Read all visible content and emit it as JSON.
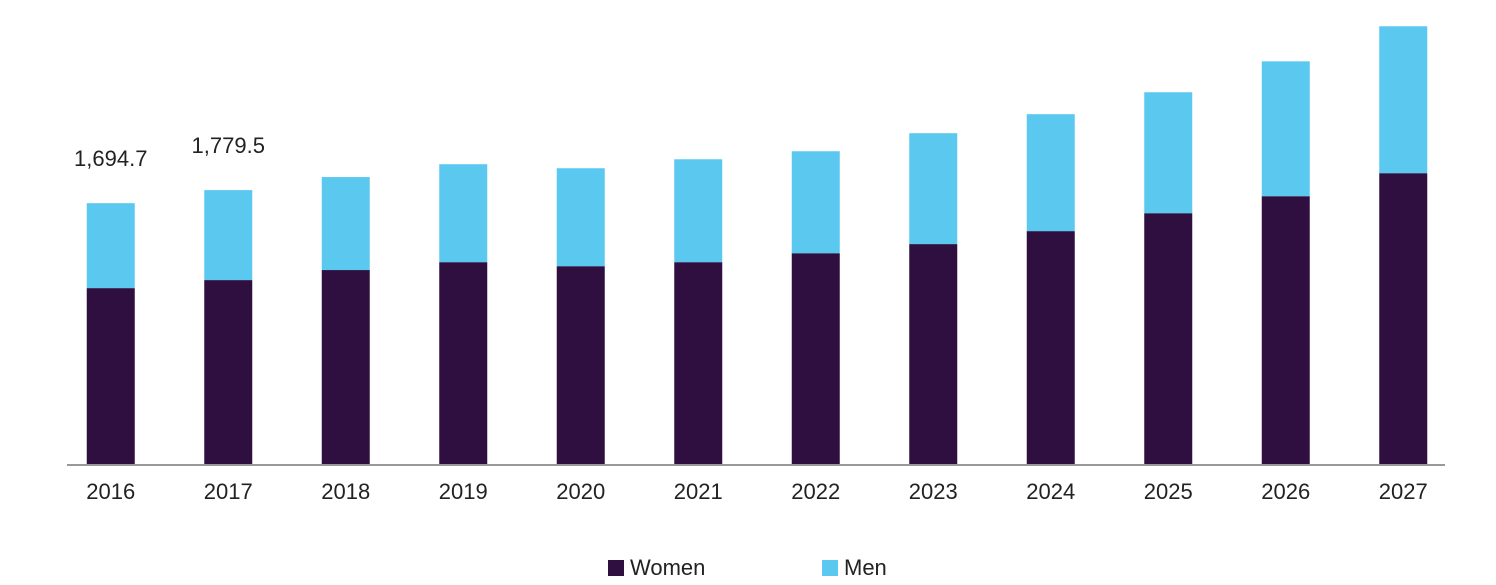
{
  "chart_data": {
    "type": "stacked_bar",
    "categories": [
      "2016",
      "2017",
      "2018",
      "2019",
      "2020",
      "2021",
      "2022",
      "2023",
      "2024",
      "2025",
      "2026",
      "2027"
    ],
    "series": [
      {
        "name": "Women",
        "color": "#2e0f40",
        "values": [
          1145,
          1197,
          1262,
          1313,
          1287,
          1313,
          1371,
          1430,
          1514,
          1630,
          1740,
          1889
        ]
      },
      {
        "name": "Men",
        "color": "#5bc8f0",
        "values": [
          549.7,
          582.5,
          602,
          634,
          634,
          666,
          660,
          718,
          757,
          783,
          873,
          951
        ]
      }
    ],
    "totals": [
      1694.7,
      1779.5,
      null,
      null,
      null,
      null,
      null,
      null,
      null,
      null,
      null,
      null
    ],
    "total_labels": [
      "1,694.7",
      "1,779.5",
      null,
      null,
      null,
      null,
      null,
      null,
      null,
      null,
      null,
      null
    ],
    "ylim": [
      0,
      2900
    ],
    "legend": "bottom"
  }
}
